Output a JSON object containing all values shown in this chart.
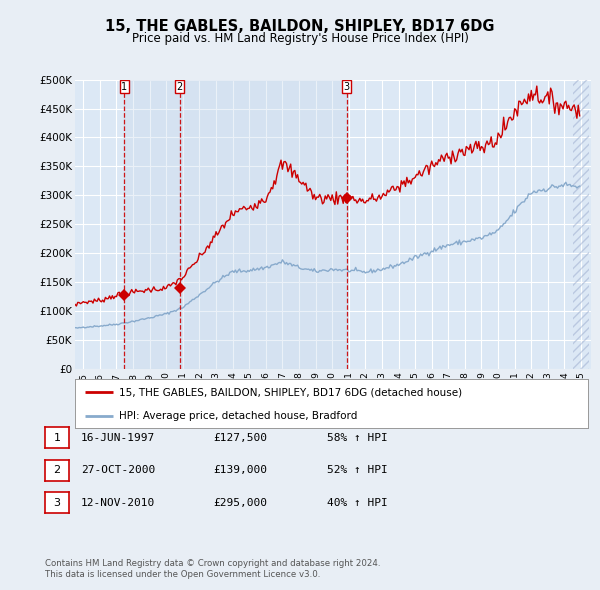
{
  "title": "15, THE GABLES, BAILDON, SHIPLEY, BD17 6DG",
  "subtitle": "Price paid vs. HM Land Registry's House Price Index (HPI)",
  "bg_color": "#e8eef5",
  "plot_bg_color": "#dce8f5",
  "grid_color": "#ffffff",
  "sale_color": "#cc0000",
  "hpi_color": "#88aacc",
  "highlight_color": "#c8d8ec",
  "ylim": [
    0,
    500000
  ],
  "yticks": [
    0,
    50000,
    100000,
    150000,
    200000,
    250000,
    300000,
    350000,
    400000,
    450000,
    500000
  ],
  "ytick_labels": [
    "£0",
    "£50K",
    "£100K",
    "£150K",
    "£200K",
    "£250K",
    "£300K",
    "£350K",
    "£400K",
    "£450K",
    "£500K"
  ],
  "sales": [
    {
      "date_num": 1997.46,
      "price": 127500,
      "label": "1"
    },
    {
      "date_num": 2000.82,
      "price": 139000,
      "label": "2"
    },
    {
      "date_num": 2010.87,
      "price": 295000,
      "label": "3"
    }
  ],
  "hpi_yearly": {
    "1994": 68000,
    "1995": 72000,
    "1996": 74000,
    "1997": 77000,
    "1998": 82000,
    "1999": 88000,
    "2000": 95000,
    "2001": 106000,
    "2002": 128000,
    "2003": 150000,
    "2004": 168000,
    "2005": 170000,
    "2006": 175000,
    "2007": 185000,
    "2008": 175000,
    "2009": 168000,
    "2010": 172000,
    "2011": 170000,
    "2012": 167000,
    "2013": 172000,
    "2014": 180000,
    "2015": 192000,
    "2016": 204000,
    "2017": 214000,
    "2018": 220000,
    "2019": 226000,
    "2020": 238000,
    "2021": 272000,
    "2022": 305000,
    "2023": 312000,
    "2024": 318000,
    "2025": 314000
  },
  "sale_yearly": {
    "1994": 108000,
    "1995": 115000,
    "1996": 118000,
    "1997": 127500,
    "1998": 132000,
    "1999": 137000,
    "2000": 139000,
    "2001": 158000,
    "2002": 192000,
    "2003": 230000,
    "2004": 268000,
    "2005": 280000,
    "2006": 295000,
    "2007": 355000,
    "2008": 330000,
    "2009": 295000,
    "2010": 295000,
    "2011": 295000,
    "2012": 290000,
    "2013": 298000,
    "2014": 315000,
    "2015": 332000,
    "2016": 350000,
    "2017": 368000,
    "2018": 378000,
    "2019": 382000,
    "2020": 398000,
    "2021": 445000,
    "2022": 478000,
    "2023": 465000,
    "2024": 455000,
    "2025": 450000
  },
  "legend_sale_label": "15, THE GABLES, BAILDON, SHIPLEY, BD17 6DG (detached house)",
  "legend_hpi_label": "HPI: Average price, detached house, Bradford",
  "table_data": [
    {
      "num": "1",
      "date": "16-JUN-1997",
      "price": "£127,500",
      "change": "58% ↑ HPI"
    },
    {
      "num": "2",
      "date": "27-OCT-2000",
      "price": "£139,000",
      "change": "52% ↑ HPI"
    },
    {
      "num": "3",
      "date": "12-NOV-2010",
      "price": "£295,000",
      "change": "40% ↑ HPI"
    }
  ],
  "footnote1": "Contains HM Land Registry data © Crown copyright and database right 2024.",
  "footnote2": "This data is licensed under the Open Government Licence v3.0."
}
